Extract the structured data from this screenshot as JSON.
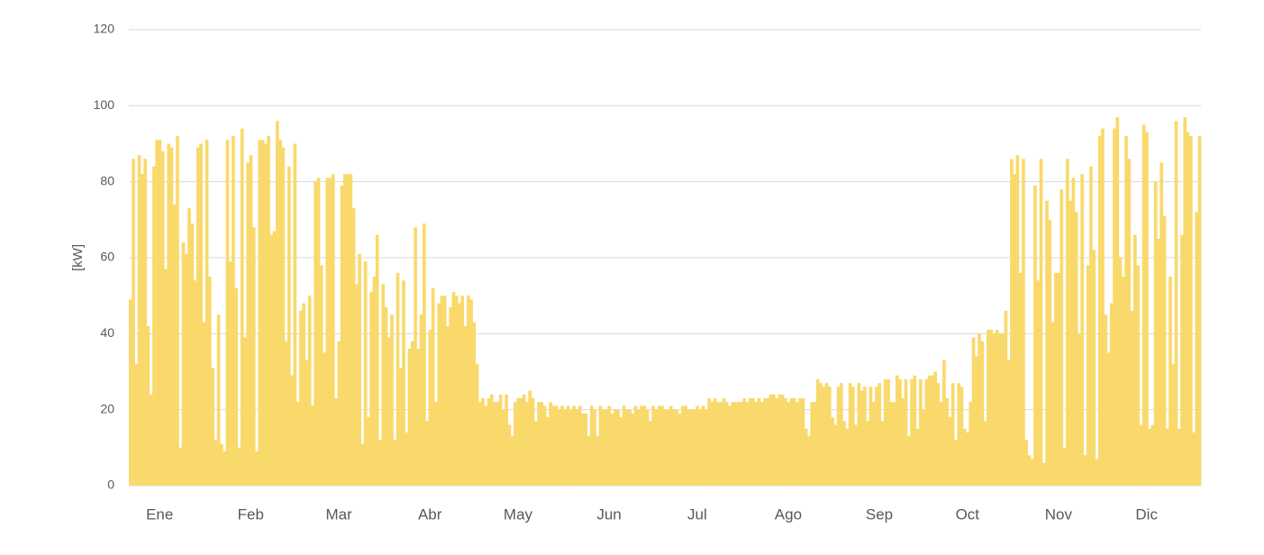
{
  "chart_data": {
    "type": "bar",
    "y_label": "[kW]",
    "color": "#f9d96b",
    "grid": true,
    "ylim": [
      0,
      120
    ],
    "yticks": [
      0,
      20,
      40,
      60,
      80,
      100,
      120
    ],
    "categories": [
      null,
      null,
      null,
      null,
      null,
      null,
      null,
      null,
      null,
      null,
      "Ene",
      null,
      null,
      null,
      null,
      null,
      null,
      null,
      null,
      null,
      null,
      null,
      null,
      null,
      null,
      null,
      null,
      null,
      null,
      null,
      null,
      null,
      null,
      null,
      null,
      null,
      null,
      null,
      null,
      null,
      null,
      "Feb",
      null,
      null,
      null,
      null,
      null,
      null,
      null,
      null,
      null,
      null,
      null,
      null,
      null,
      null,
      null,
      null,
      null,
      null,
      null,
      null,
      null,
      null,
      null,
      null,
      null,
      null,
      null,
      null,
      null,
      "Mar",
      null,
      null,
      null,
      null,
      null,
      null,
      null,
      null,
      null,
      null,
      null,
      null,
      null,
      null,
      null,
      null,
      null,
      null,
      null,
      null,
      null,
      null,
      null,
      null,
      null,
      null,
      null,
      null,
      null,
      null,
      "Abr",
      null,
      null,
      null,
      null,
      null,
      null,
      null,
      null,
      null,
      null,
      null,
      null,
      null,
      null,
      null,
      null,
      null,
      null,
      null,
      null,
      null,
      null,
      null,
      null,
      null,
      null,
      null,
      null,
      null,
      "May",
      null,
      null,
      null,
      null,
      null,
      null,
      null,
      null,
      null,
      null,
      null,
      null,
      null,
      null,
      null,
      null,
      null,
      null,
      null,
      null,
      null,
      null,
      null,
      null,
      null,
      null,
      null,
      null,
      null,
      null,
      "Jun",
      null,
      null,
      null,
      null,
      null,
      null,
      null,
      null,
      null,
      null,
      null,
      null,
      null,
      null,
      null,
      null,
      null,
      null,
      null,
      null,
      null,
      null,
      null,
      null,
      null,
      null,
      null,
      null,
      null,
      "Jul",
      null,
      null,
      null,
      null,
      null,
      null,
      null,
      null,
      null,
      null,
      null,
      null,
      null,
      null,
      null,
      null,
      null,
      null,
      null,
      null,
      null,
      null,
      null,
      null,
      null,
      null,
      null,
      null,
      null,
      null,
      "Ago",
      null,
      null,
      null,
      null,
      null,
      null,
      null,
      null,
      null,
      null,
      null,
      null,
      null,
      null,
      null,
      null,
      null,
      null,
      null,
      null,
      null,
      null,
      null,
      null,
      null,
      null,
      null,
      null,
      null,
      null,
      "Sep",
      null,
      null,
      null,
      null,
      null,
      null,
      null,
      null,
      null,
      null,
      null,
      null,
      null,
      null,
      null,
      null,
      null,
      null,
      null,
      null,
      null,
      null,
      null,
      null,
      null,
      null,
      null,
      null,
      null,
      "Oct",
      null,
      null,
      null,
      null,
      null,
      null,
      null,
      null,
      null,
      null,
      null,
      null,
      null,
      null,
      null,
      null,
      null,
      null,
      null,
      null,
      null,
      null,
      null,
      null,
      null,
      null,
      null,
      null,
      null,
      null,
      "Nov",
      null,
      null,
      null,
      null,
      null,
      null,
      null,
      null,
      null,
      null,
      null,
      null,
      null,
      null,
      null,
      null,
      null,
      null,
      null,
      null,
      null,
      null,
      null,
      null,
      null,
      null,
      null,
      null,
      null,
      "Dic",
      null,
      null,
      null,
      null,
      null,
      null,
      null,
      null,
      null,
      null,
      null,
      null,
      null,
      null,
      null,
      null,
      null,
      null
    ],
    "values": [
      49,
      86,
      32,
      87,
      82,
      86,
      42,
      24,
      84,
      91,
      91,
      88,
      57,
      90,
      89,
      74,
      92,
      10,
      64,
      61,
      73,
      69,
      54,
      89,
      90,
      43,
      91,
      55,
      31,
      12,
      45,
      11,
      9,
      91,
      59,
      92,
      52,
      10,
      94,
      39,
      85,
      87,
      68,
      9,
      91,
      91,
      90,
      92,
      66,
      67,
      96,
      91,
      89,
      38,
      84,
      29,
      90,
      22,
      46,
      48,
      33,
      50,
      21,
      80,
      81,
      58,
      35,
      81,
      81,
      82,
      23,
      38,
      79,
      82,
      82,
      82,
      73,
      53,
      61,
      11,
      59,
      18,
      51,
      55,
      66,
      12,
      53,
      47,
      39,
      45,
      12,
      56,
      31,
      54,
      14,
      36,
      38,
      68,
      36,
      45,
      69,
      17,
      41,
      52,
      22,
      48,
      50,
      50,
      42,
      47,
      51,
      50,
      48,
      50,
      42,
      50,
      49,
      43,
      32,
      22,
      23,
      21,
      23,
      24,
      22,
      22,
      24,
      20,
      24,
      16,
      13,
      22,
      23,
      23,
      24,
      22,
      25,
      23,
      17,
      22,
      22,
      21,
      18,
      22,
      21,
      21,
      20,
      21,
      20,
      21,
      20,
      21,
      20,
      21,
      19,
      19,
      13,
      21,
      20,
      13,
      21,
      20,
      20,
      21,
      19,
      20,
      20,
      18,
      21,
      20,
      20,
      19,
      21,
      20,
      21,
      21,
      20,
      17,
      21,
      20,
      21,
      21,
      20,
      20,
      21,
      20,
      20,
      19,
      21,
      21,
      20,
      20,
      20,
      21,
      20,
      21,
      20,
      23,
      22,
      23,
      22,
      22,
      23,
      22,
      21,
      22,
      22,
      22,
      22,
      23,
      22,
      23,
      23,
      22,
      23,
      22,
      23,
      23,
      24,
      24,
      23,
      24,
      24,
      23,
      22,
      23,
      23,
      22,
      23,
      23,
      15,
      13,
      22,
      22,
      28,
      27,
      26,
      27,
      26,
      18,
      16,
      26,
      27,
      17,
      15,
      27,
      26,
      16,
      27,
      25,
      26,
      17,
      26,
      22,
      26,
      27,
      17,
      28,
      28,
      22,
      22,
      29,
      28,
      23,
      28,
      13,
      28,
      29,
      15,
      28,
      20,
      28,
      29,
      29,
      30,
      27,
      22,
      33,
      23,
      18,
      27,
      12,
      27,
      26,
      15,
      14,
      22,
      39,
      34,
      40,
      38,
      17,
      41,
      41,
      40,
      41,
      40,
      40,
      46,
      33,
      86,
      82,
      87,
      56,
      86,
      12,
      8,
      7,
      79,
      54,
      86,
      6,
      75,
      70,
      43,
      56,
      56,
      78,
      10,
      86,
      75,
      81,
      72,
      40,
      82,
      8,
      58,
      84,
      62,
      7,
      92,
      94,
      45,
      35,
      48,
      94,
      97,
      60,
      55,
      92,
      86,
      46,
      66,
      58,
      16,
      95,
      93,
      15,
      16,
      80,
      65,
      85,
      71,
      15,
      55,
      32,
      96,
      15,
      66,
      97,
      93,
      92,
      14,
      72,
      92
    ]
  }
}
